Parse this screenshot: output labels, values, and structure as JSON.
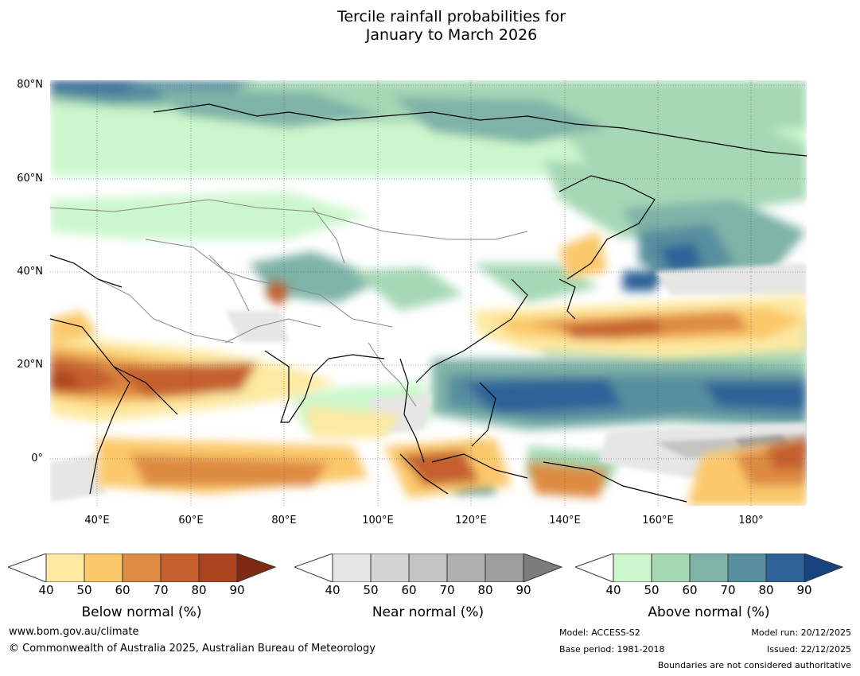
{
  "title": {
    "line1": "Tercile rainfall probabilities for",
    "line2": "January to March 2026"
  },
  "map": {
    "latitude_labels": [
      "80°N",
      "60°N",
      "40°N",
      "20°N",
      "0°"
    ],
    "longitude_labels": [
      "40°E",
      "60°E",
      "80°E",
      "100°E",
      "120°E",
      "140°E",
      "160°E",
      "180°"
    ],
    "extent": {
      "lon_min": 30,
      "lon_max": 191,
      "lat_min": -10,
      "lat_max": 80
    }
  },
  "legend": {
    "below": {
      "title": "Below normal (%)",
      "ticks": [
        "40",
        "50",
        "60",
        "70",
        "80",
        "90"
      ],
      "colors": [
        "#fde9a2",
        "#fbc86a",
        "#de8b43",
        "#c5602e",
        "#a9441f",
        "#7f2b14"
      ]
    },
    "near": {
      "title": "Near normal (%)",
      "ticks": [
        "40",
        "50",
        "60",
        "70",
        "80",
        "90"
      ],
      "colors": [
        "#e6e6e6",
        "#d4d4d4",
        "#c3c3c3",
        "#b0b0b0",
        "#9e9e9e",
        "#7c7c7c"
      ]
    },
    "above": {
      "title": "Above normal (%)",
      "ticks": [
        "40",
        "50",
        "60",
        "70",
        "80",
        "90"
      ],
      "colors": [
        "#ccf7cc",
        "#a6d8b6",
        "#7fb3a7",
        "#578f9f",
        "#2e6298",
        "#17447f"
      ]
    }
  },
  "footer": {
    "website": "www.bom.gov.au/climate",
    "copyright": "© Commonwealth of Australia 2025, Australian Bureau of Meteorology",
    "model": "Model: ACCESS-S2",
    "base_period": "Base period: 1981-2018",
    "model_run": "Model run: 20/12/2025",
    "issued": "Issued: 22/12/2025",
    "disclaimer": "Boundaries are not considered authoritative"
  }
}
